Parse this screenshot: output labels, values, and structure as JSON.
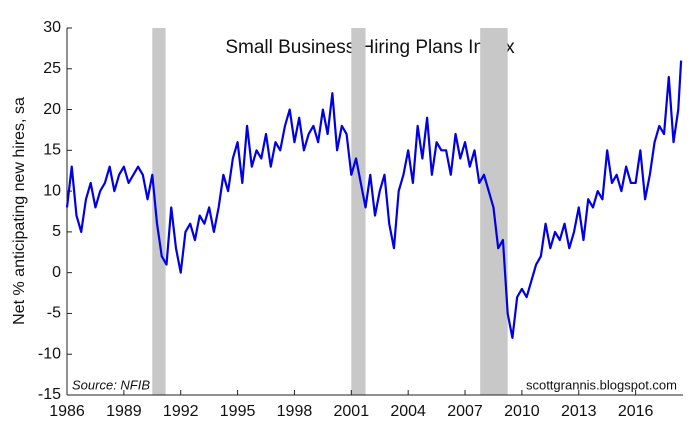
{
  "chart_data": {
    "type": "line",
    "title": "Small Business Hiring Plans Index",
    "y_label": "Net % anticipating new hires, sa",
    "annotations": [
      "Source: NFIB",
      "scottgrannis.blogspot.com"
    ],
    "color": "#0000e6",
    "shading_color": "#c8c8c8",
    "shaded_ranges": [
      [
        1990.5,
        1991.2
      ],
      [
        2001.0,
        2001.75
      ],
      [
        2007.8,
        2009.25
      ]
    ],
    "x": [
      1986,
      1986.25,
      1986.5,
      1986.75,
      1987,
      1987.25,
      1987.5,
      1987.75,
      1988,
      1988.25,
      1988.5,
      1988.75,
      1989,
      1989.25,
      1989.5,
      1989.75,
      1990,
      1990.25,
      1990.5,
      1990.75,
      1991,
      1991.25,
      1991.5,
      1991.75,
      1992,
      1992.25,
      1992.5,
      1992.75,
      1993,
      1993.25,
      1993.5,
      1993.75,
      1994,
      1994.25,
      1994.5,
      1994.75,
      1995,
      1995.25,
      1995.5,
      1995.75,
      1996,
      1996.25,
      1996.5,
      1996.75,
      1997,
      1997.25,
      1997.5,
      1997.75,
      1998,
      1998.25,
      1998.5,
      1998.75,
      1999,
      1999.25,
      1999.5,
      1999.75,
      2000,
      2000.25,
      2000.5,
      2000.75,
      2001,
      2001.25,
      2001.5,
      2001.75,
      2002,
      2002.25,
      2002.5,
      2002.75,
      2003,
      2003.25,
      2003.5,
      2003.75,
      2004,
      2004.25,
      2004.5,
      2004.75,
      2005,
      2005.25,
      2005.5,
      2005.75,
      2006,
      2006.25,
      2006.5,
      2006.75,
      2007,
      2007.25,
      2007.5,
      2007.75,
      2008,
      2008.25,
      2008.5,
      2008.75,
      2009,
      2009.25,
      2009.5,
      2009.75,
      2010,
      2010.25,
      2010.5,
      2010.75,
      2011,
      2011.25,
      2011.5,
      2011.75,
      2012,
      2012.25,
      2012.5,
      2012.75,
      2013,
      2013.25,
      2013.5,
      2013.75,
      2014,
      2014.25,
      2014.5,
      2014.75,
      2015,
      2015.25,
      2015.5,
      2015.75,
      2016,
      2016.25,
      2016.5,
      2016.75,
      2017,
      2017.25,
      2017.5,
      2017.75,
      2018,
      2018.25,
      2018.4
    ],
    "values": [
      8,
      13,
      7,
      5,
      9,
      11,
      8,
      10,
      11,
      13,
      10,
      12,
      13,
      11,
      12,
      13,
      12,
      9,
      12,
      6,
      2,
      1,
      8,
      3,
      0,
      5,
      6,
      4,
      7,
      6,
      8,
      5,
      8,
      12,
      10,
      14,
      16,
      11,
      18,
      13,
      15,
      14,
      17,
      13,
      16,
      15,
      18,
      20,
      16,
      19,
      15,
      17,
      18,
      16,
      20,
      17,
      22,
      15,
      18,
      17,
      12,
      14,
      11,
      8,
      12,
      7,
      10,
      12,
      6,
      3,
      10,
      12,
      15,
      11,
      18,
      14,
      19,
      12,
      16,
      15,
      15,
      12,
      17,
      14,
      16,
      13,
      15,
      11,
      12,
      10,
      8,
      3,
      4,
      -5,
      -8,
      -3,
      -2,
      -3,
      -1,
      1,
      2,
      6,
      3,
      5,
      4,
      6,
      3,
      5,
      8,
      4,
      9,
      8,
      10,
      9,
      15,
      11,
      12,
      10,
      13,
      11,
      11,
      15,
      9,
      12,
      16,
      18,
      17,
      24,
      16,
      20,
      26
    ],
    "xlim": [
      1986,
      2018.5
    ],
    "xticks": [
      1986,
      1989,
      1992,
      1995,
      1998,
      2001,
      2004,
      2007,
      2010,
      2013,
      2016
    ],
    "ylim": [
      -15,
      30
    ],
    "yticks": [
      -15,
      -10,
      -5,
      0,
      5,
      10,
      15,
      20,
      25,
      30
    ],
    "grid": false
  }
}
